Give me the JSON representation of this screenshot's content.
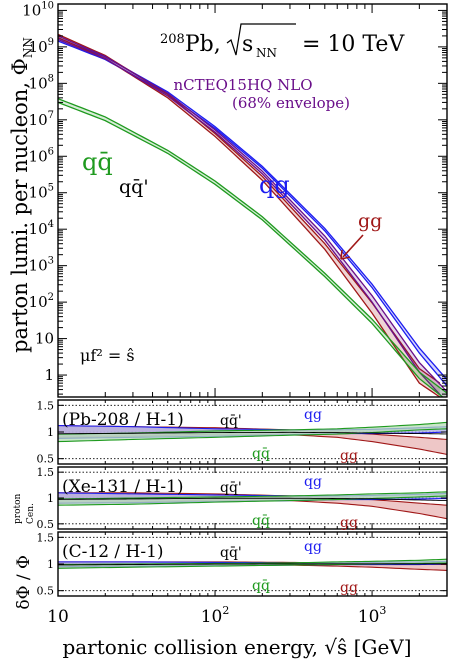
{
  "chart_data": [
    {
      "type": "line",
      "title": "²⁰⁸Pb, √sNN = 10 TeV",
      "title_parts": {
        "mass_number": "208",
        "element": "Pb",
        "sqrt_label": "s",
        "sqrt_sub": "NN",
        "value": "= 10 TeV"
      },
      "subtitle": [
        "nCTEQ15HQ NLO",
        "(68% envelope)"
      ],
      "ylabel": "parton lumi. per nucleon, Φ",
      "ylabel_sub": "NN",
      "xlabel": "partonic collision energy, √ŝ  [GeV]",
      "x_scale": "log",
      "y_scale": "log",
      "xlim": [
        10,
        3000
      ],
      "ylim": [
        0.25,
        15000000000.0
      ],
      "x_ticks": [
        {
          "v": 10,
          "label": "10"
        },
        {
          "v": 100,
          "label": "10",
          "exp": "2"
        },
        {
          "v": 1000,
          "label": "10",
          "exp": "3"
        }
      ],
      "y_ticks": [
        {
          "v": 1,
          "label": "1"
        },
        {
          "v": 10,
          "label": "10"
        },
        {
          "v": 100,
          "label": "10",
          "exp": "2"
        },
        {
          "v": 1000,
          "label": "10",
          "exp": "3"
        },
        {
          "v": 10000,
          "label": "10",
          "exp": "4"
        },
        {
          "v": 100000,
          "label": "10",
          "exp": "5"
        },
        {
          "v": 1000000,
          "label": "10",
          "exp": "6"
        },
        {
          "v": 10000000,
          "label": "10",
          "exp": "7"
        },
        {
          "v": 100000000,
          "label": "10",
          "exp": "8"
        },
        {
          "v": 1000000000,
          "label": "10",
          "exp": "9"
        },
        {
          "v": 10000000000,
          "label": "10",
          "exp": "10"
        }
      ],
      "scale_note": "μf² = ŝ",
      "series_labels": [
        {
          "key": "qg",
          "text": "qg",
          "color": "#1c1cf0"
        },
        {
          "key": "gg",
          "text": "gg",
          "color": "#a01818"
        },
        {
          "key": "qqbar",
          "text": "qq̄",
          "color": "#1f9a1f"
        },
        {
          "key": "qqbarprime",
          "text": "qq̄'",
          "color": "#000000"
        }
      ],
      "series": [
        {
          "key": "qg",
          "color": "#1c1cf0",
          "x": [
            10,
            20,
            50,
            100,
            200,
            500,
            1000,
            2000,
            3000
          ],
          "y_low": [
            1450000000.0,
            450000000.0,
            50000000.0,
            5800000.0,
            470000.0,
            9000.0,
            250.0,
            4.0,
            0.5
          ],
          "y_high": [
            1750000000.0,
            530000000.0,
            58000000.0,
            6500000.0,
            530000.0,
            10500.0,
            310.0,
            5.5,
            0.75
          ]
        },
        {
          "key": "gg",
          "color": "#a01818",
          "x": [
            10,
            20,
            50,
            100,
            200,
            500,
            1000,
            2000,
            2700
          ],
          "y_low": [
            1800000000.0,
            480000000.0,
            40000000.0,
            3500000.0,
            220000.0,
            2800.0,
            50,
            0.6,
            0.25
          ],
          "y_high": [
            2200000000.0,
            580000000.0,
            50000000.0,
            4200000.0,
            280000.0,
            4000.0,
            95,
            1.5,
            0.6
          ]
        },
        {
          "key": "purple",
          "color": "#6a0f8a",
          "x": [
            10,
            20,
            50,
            100,
            200,
            500,
            1000,
            2000,
            3000
          ],
          "y_low": [
            1600000000.0,
            470000000.0,
            45000000.0,
            4600000.0,
            330000.0,
            5000.0,
            100.0,
            1.2,
            0.18
          ],
          "y_high": [
            2000000000.0,
            550000000.0,
            53000000.0,
            5300000.0,
            390000.0,
            6500.0,
            150.0,
            2.2,
            0.35
          ]
        },
        {
          "key": "qqbar",
          "color": "#1f9a1f",
          "x": [
            10,
            20,
            50,
            100,
            200,
            500,
            1000,
            2000,
            3000
          ],
          "y_low": [
            30000000.0,
            9500000.0,
            1200000.0,
            170000.0,
            18000.0,
            500.0,
            26,
            0.8,
            0.2
          ],
          "y_high": [
            38000000.0,
            12000000.0,
            1450000.0,
            210000.0,
            22000.0,
            620.0,
            34,
            1.2,
            0.32
          ]
        }
      ]
    },
    {
      "type": "line",
      "panels": [
        {
          "label": "(Pb-208 / H-1)",
          "bands": [
            {
              "key": "gg",
              "color": "#a01818",
              "fill": "#e8b4b4",
              "x": [
                10,
                30,
                100,
                300,
                600,
                1000,
                2000,
                3000
              ],
              "lo": [
                0.9,
                0.92,
                0.96,
                0.95,
                0.9,
                0.82,
                0.68,
                0.58
              ],
              "hi": [
                1.12,
                1.1,
                1.08,
                1.04,
                1.0,
                0.96,
                0.9,
                0.86
              ]
            },
            {
              "key": "qg",
              "color": "#1c1cf0",
              "fill": "#a9a9e4",
              "x": [
                10,
                30,
                100,
                300,
                600,
                1000,
                2000,
                3000
              ],
              "lo": [
                0.88,
                0.9,
                0.92,
                0.95,
                0.97,
                0.97,
                0.98,
                1.0
              ],
              "hi": [
                1.12,
                1.1,
                1.06,
                1.04,
                1.04,
                1.05,
                1.08,
                1.1
              ]
            },
            {
              "key": "qqbar",
              "color": "#1f9a1f",
              "fill": "#b8deb8",
              "x": [
                10,
                30,
                100,
                300,
                600,
                1000,
                2000,
                3000
              ],
              "lo": [
                0.82,
                0.86,
                0.9,
                0.94,
                0.96,
                0.99,
                1.04,
                1.06
              ],
              "hi": [
                0.96,
                0.98,
                1.02,
                1.04,
                1.06,
                1.09,
                1.14,
                1.18
              ]
            }
          ]
        },
        {
          "label": "(Xe-131 / H-1)",
          "bands": [
            {
              "key": "gg",
              "color": "#a01818",
              "fill": "#e8b4b4",
              "x": [
                10,
                30,
                100,
                300,
                600,
                1000,
                2000,
                3000
              ],
              "lo": [
                0.9,
                0.92,
                0.96,
                0.95,
                0.9,
                0.84,
                0.7,
                0.6
              ],
              "hi": [
                1.1,
                1.1,
                1.08,
                1.04,
                1.0,
                0.97,
                0.9,
                0.86
              ]
            },
            {
              "key": "qg",
              "color": "#1c1cf0",
              "fill": "#a9a9e4",
              "x": [
                10,
                30,
                100,
                300,
                600,
                1000,
                2000,
                3000
              ],
              "lo": [
                0.9,
                0.91,
                0.93,
                0.95,
                0.97,
                0.97,
                0.98,
                0.99
              ],
              "hi": [
                1.1,
                1.08,
                1.06,
                1.04,
                1.04,
                1.05,
                1.07,
                1.09
              ]
            },
            {
              "key": "qqbar",
              "color": "#1f9a1f",
              "fill": "#b8deb8",
              "x": [
                10,
                30,
                100,
                300,
                600,
                1000,
                2000,
                3000
              ],
              "lo": [
                0.86,
                0.88,
                0.92,
                0.95,
                0.97,
                0.99,
                1.02,
                1.04
              ],
              "hi": [
                0.98,
                1.0,
                1.02,
                1.04,
                1.06,
                1.08,
                1.1,
                1.12
              ]
            }
          ]
        },
        {
          "label": "(C-12 / H-1)",
          "bands": [
            {
              "key": "gg",
              "color": "#a01818",
              "fill": "#e8b4b4",
              "x": [
                10,
                30,
                100,
                300,
                600,
                1000,
                2000,
                3000
              ],
              "lo": [
                0.95,
                0.96,
                0.98,
                0.98,
                0.96,
                0.94,
                0.9,
                0.88
              ],
              "hi": [
                1.04,
                1.04,
                1.04,
                1.03,
                1.02,
                1.01,
                1.0,
                0.99
              ]
            },
            {
              "key": "qg",
              "color": "#1c1cf0",
              "fill": "#a9a9e4",
              "x": [
                10,
                30,
                100,
                300,
                600,
                1000,
                2000,
                3000
              ],
              "lo": [
                0.95,
                0.96,
                0.97,
                0.98,
                0.99,
                0.99,
                0.99,
                1.0
              ],
              "hi": [
                1.04,
                1.04,
                1.03,
                1.02,
                1.02,
                1.03,
                1.04,
                1.05
              ]
            },
            {
              "key": "qqbar",
              "color": "#1f9a1f",
              "fill": "#b8deb8",
              "x": [
                10,
                30,
                100,
                300,
                600,
                1000,
                2000,
                3000
              ],
              "lo": [
                0.92,
                0.94,
                0.96,
                0.98,
                0.99,
                1.0,
                1.01,
                1.02
              ],
              "hi": [
                0.99,
                1.0,
                1.01,
                1.02,
                1.04,
                1.05,
                1.07,
                1.09
              ]
            }
          ]
        }
      ],
      "ylim": [
        0.4,
        1.6
      ],
      "y_ticks": [
        "0.5",
        "1",
        "1.5"
      ],
      "ref_lines": [
        0.5,
        1,
        1.5
      ],
      "ylabel": "δΦ / Φ",
      "ylabel_sup": "proton",
      "ylabel_sub": "Cen.",
      "labels": {
        "qqbarprime": "qq̄'",
        "qg": "qg",
        "qqbar": "qq̄",
        "gg": "gg"
      }
    }
  ]
}
